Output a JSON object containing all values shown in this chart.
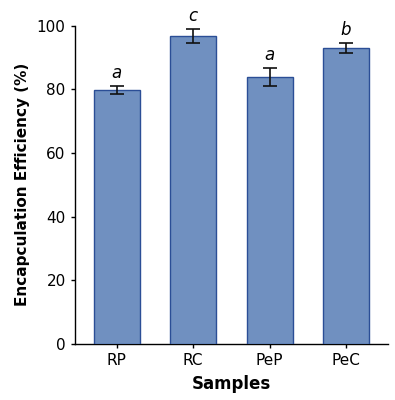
{
  "categories": [
    "RP",
    "RC",
    "PeP",
    "PeC"
  ],
  "values": [
    79.8,
    96.8,
    83.8,
    93.0
  ],
  "errors": [
    1.2,
    2.2,
    2.8,
    1.5
  ],
  "letters": [
    "a",
    "c",
    "a",
    "b"
  ],
  "bar_color": "#7090C0",
  "bar_edgecolor": "#2B4E96",
  "errorbar_color": "#111111",
  "xlabel": "Samples",
  "ylabel": "Encapculation Efficiency (%)",
  "ylim": [
    0,
    100
  ],
  "yticks": [
    0,
    20,
    40,
    60,
    80,
    100
  ],
  "xlabel_fontsize": 12,
  "ylabel_fontsize": 11,
  "tick_fontsize": 11,
  "letter_fontsize": 12,
  "background_color": "#ffffff",
  "bar_width": 0.6
}
